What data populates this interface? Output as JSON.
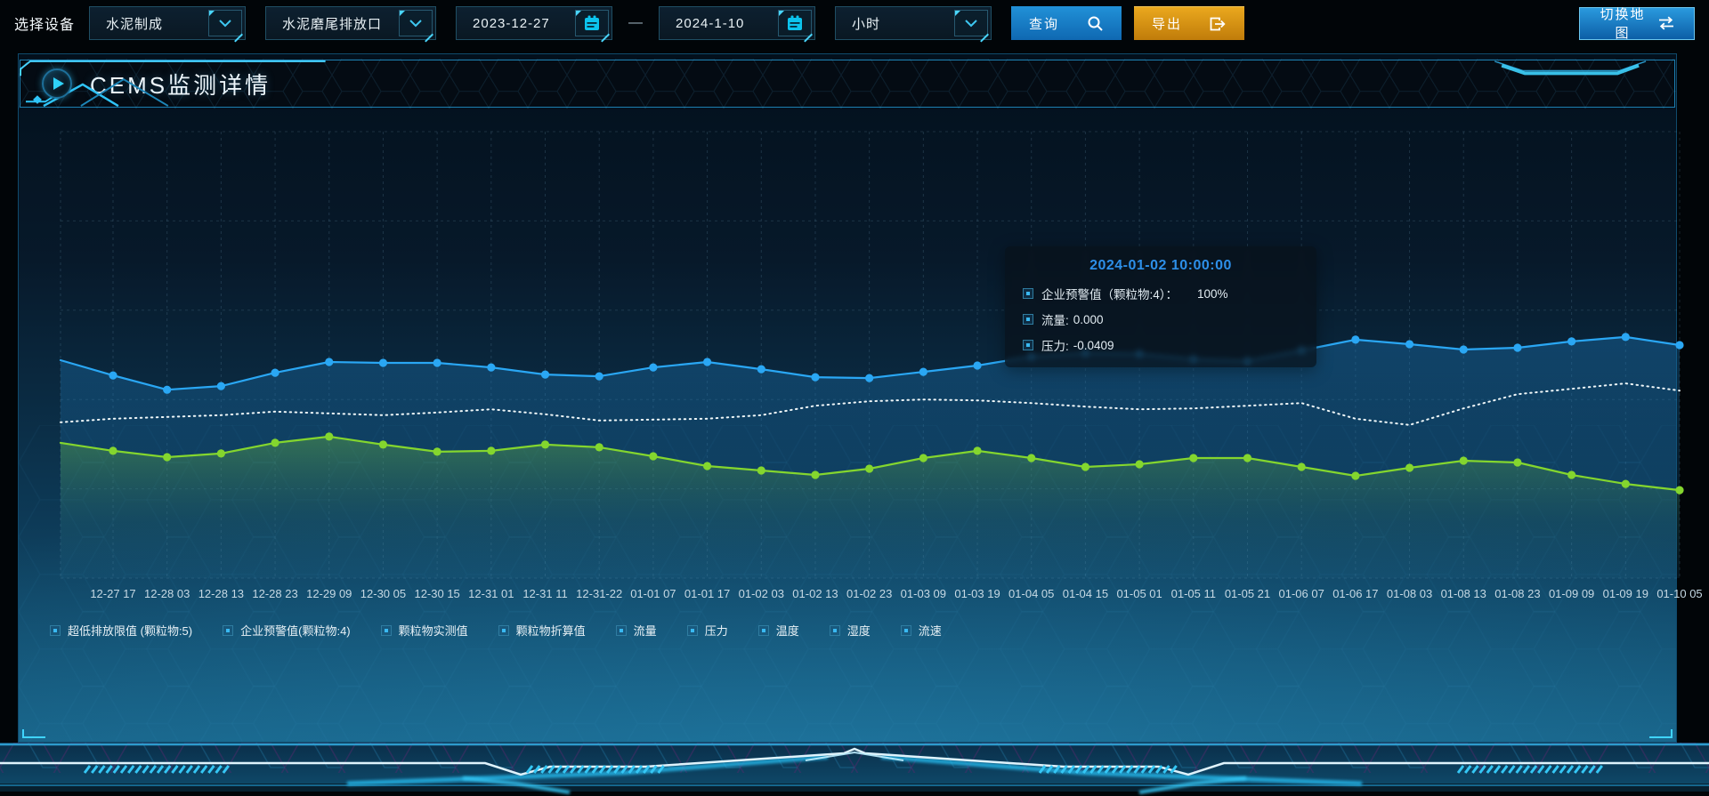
{
  "toolbar": {
    "device_label": "选择设备",
    "device_select": {
      "value": "水泥制成",
      "icon": "chevron-down"
    },
    "outlet_select": {
      "value": "水泥磨尾排放口",
      "icon": "chevron-down"
    },
    "date_start": {
      "value": "2023-12-27",
      "icon": "calendar"
    },
    "date_separator": "—",
    "date_end": {
      "value": "2024-1-10",
      "icon": "calendar"
    },
    "interval_select": {
      "value": "小时",
      "icon": "chevron-down"
    },
    "query_button": {
      "label": "查询",
      "icon": "search",
      "color": "#1579c2"
    },
    "export_button": {
      "label": "导出",
      "icon": "export-arrow",
      "color": "#d4920f"
    },
    "switch_map_button": {
      "label": "切换地图",
      "icon": "swap-arrows",
      "color": "#1279c4"
    }
  },
  "panel": {
    "title": "CEMS监测详情",
    "title_icon": "play",
    "accent_color": "#35c7f5"
  },
  "tooltip": {
    "title": "2024-01-02 10:00:00",
    "title_color": "#2d8fe8",
    "items": [
      {
        "label": "企业预警值（颗粒物:4）：",
        "value": "100%"
      },
      {
        "label": "流量:",
        "value": "0.000"
      },
      {
        "label": "压力:",
        "value": "-0.0409"
      }
    ]
  },
  "legend": {
    "items": [
      "超低排放限值 (颗粒物:5)",
      "企业预警值(颗粒物:4)",
      "颗粒物实测值",
      "颗粒物折算值",
      "流量",
      "压力",
      "温度",
      "湿度",
      "流速"
    ]
  },
  "chart_data": {
    "type": "line",
    "title": "",
    "xlabel": "",
    "ylabel": "",
    "y_axis_visible": false,
    "ylim": [
      0,
      100
    ],
    "grid": true,
    "legend_position": "bottom",
    "x_labels": [
      "12-27 17",
      "12-28 03",
      "12-28 13",
      "12-28 23",
      "12-29 09",
      "12-30 05",
      "12-30 15",
      "12-31 01",
      "12-31 11",
      "12-31-22",
      "01-01 07",
      "01-01 17",
      "01-02 03",
      "01-02 13",
      "01-02 23",
      "01-03 09",
      "01-03 19",
      "01-04 05",
      "01-04 15",
      "01-05 01",
      "01-05 11",
      "01-05 21",
      "01-06 07",
      "01-06 17",
      "01-08 03",
      "01-08 13",
      "01-08 23",
      "01-09 09",
      "01-09 19",
      "01-10 05"
    ],
    "values_note": "values are percent of plot height (0=bottom,100=top); first value of each series is the line start at the left plot edge (no dot, no label)",
    "series": [
      {
        "name": "企业预警值(颗粒物:4)",
        "color": "#2aa7f4",
        "line_style": "solid",
        "show_points": true,
        "area": true,
        "values": [
          48.8,
          45.4,
          42.2,
          43.0,
          46.0,
          48.4,
          48.2,
          48.2,
          47.2,
          45.6,
          45.2,
          47.2,
          48.4,
          46.8,
          45.0,
          44.8,
          46.2,
          47.6,
          49.6,
          50.4,
          50.2,
          49.0,
          48.6,
          51.0,
          53.4,
          52.4,
          51.2,
          51.6,
          53.0,
          54.0,
          52.2
        ]
      },
      {
        "name": "压力",
        "color": "#eef6f8",
        "line_style": "dotted",
        "show_points": false,
        "area": false,
        "values": [
          34.9,
          35.7,
          36.1,
          36.5,
          37.3,
          36.9,
          36.5,
          37.1,
          37.8,
          36.7,
          35.3,
          35.5,
          35.7,
          36.5,
          38.6,
          39.6,
          40.0,
          39.8,
          39.2,
          38.4,
          37.8,
          38.0,
          38.6,
          39.2,
          35.7,
          34.3,
          38.0,
          41.2,
          42.4,
          43.6,
          42.0
        ]
      },
      {
        "name": "流量",
        "color": "#84d62e",
        "line_style": "solid",
        "show_points": true,
        "area": true,
        "values": [
          30.3,
          28.5,
          27.1,
          27.9,
          30.3,
          31.7,
          29.9,
          28.3,
          28.5,
          29.9,
          29.3,
          27.3,
          25.1,
          24.1,
          23.1,
          24.5,
          26.9,
          28.5,
          26.9,
          24.9,
          25.5,
          26.9,
          26.9,
          24.9,
          22.9,
          24.7,
          26.3,
          25.9,
          23.1,
          21.1,
          19.7
        ]
      }
    ]
  }
}
